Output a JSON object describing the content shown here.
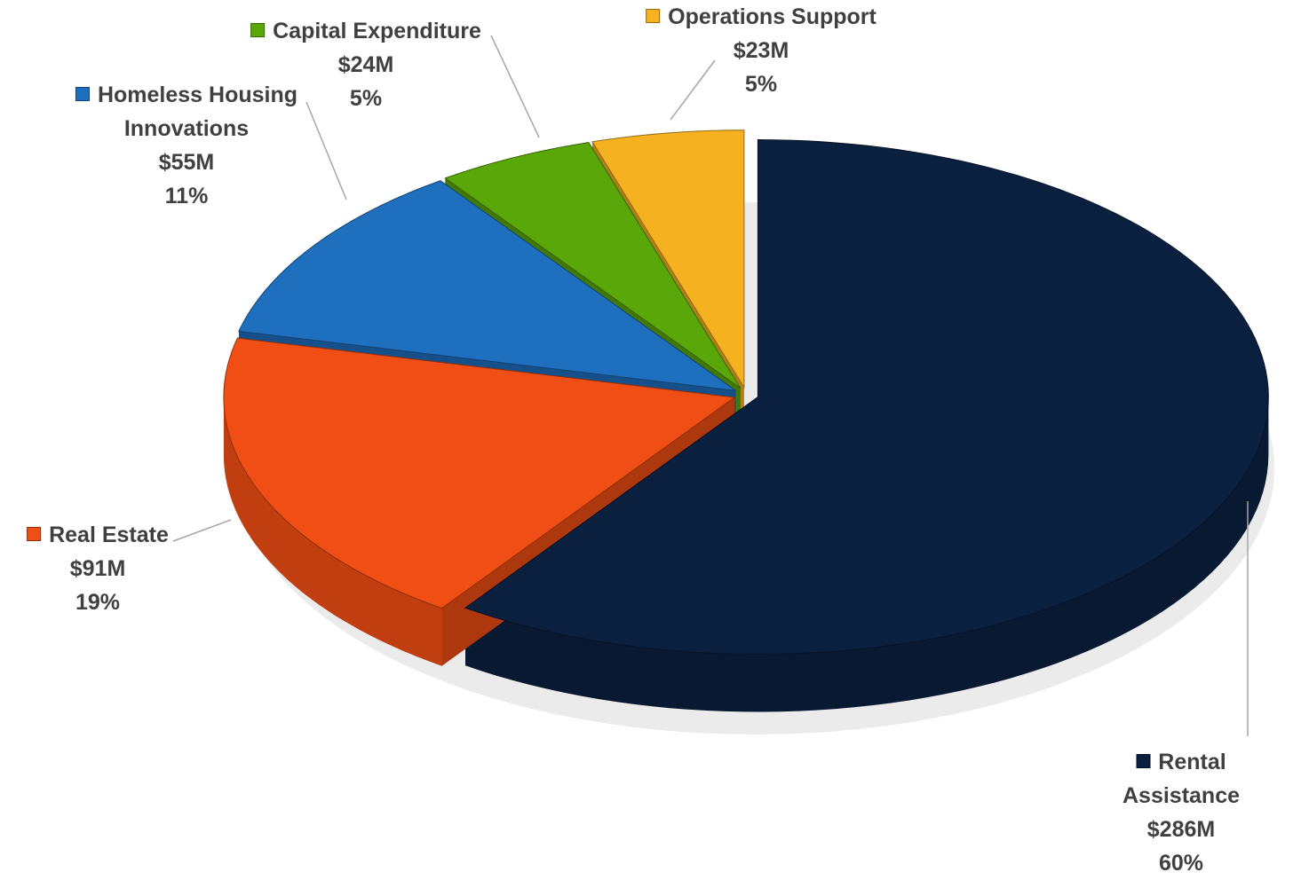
{
  "chart_data": {
    "type": "pie",
    "categories": [
      "Rental Assistance",
      "Real Estate",
      "Homeless Housing\nInnovations",
      "Capital Expenditure",
      "Operations Support"
    ],
    "values": [
      286,
      91,
      55,
      24,
      23
    ],
    "value_labels": [
      "$286M",
      "$91M",
      "$55M",
      "$24M",
      "$23M"
    ],
    "percent_labels": [
      "60%",
      "19%",
      "11%",
      "5%",
      "5%"
    ],
    "colors": [
      "#0b1f3f",
      "#f04e14",
      "#1f6fbf",
      "#5aa70a",
      "#f5b120"
    ],
    "three_d": true
  }
}
